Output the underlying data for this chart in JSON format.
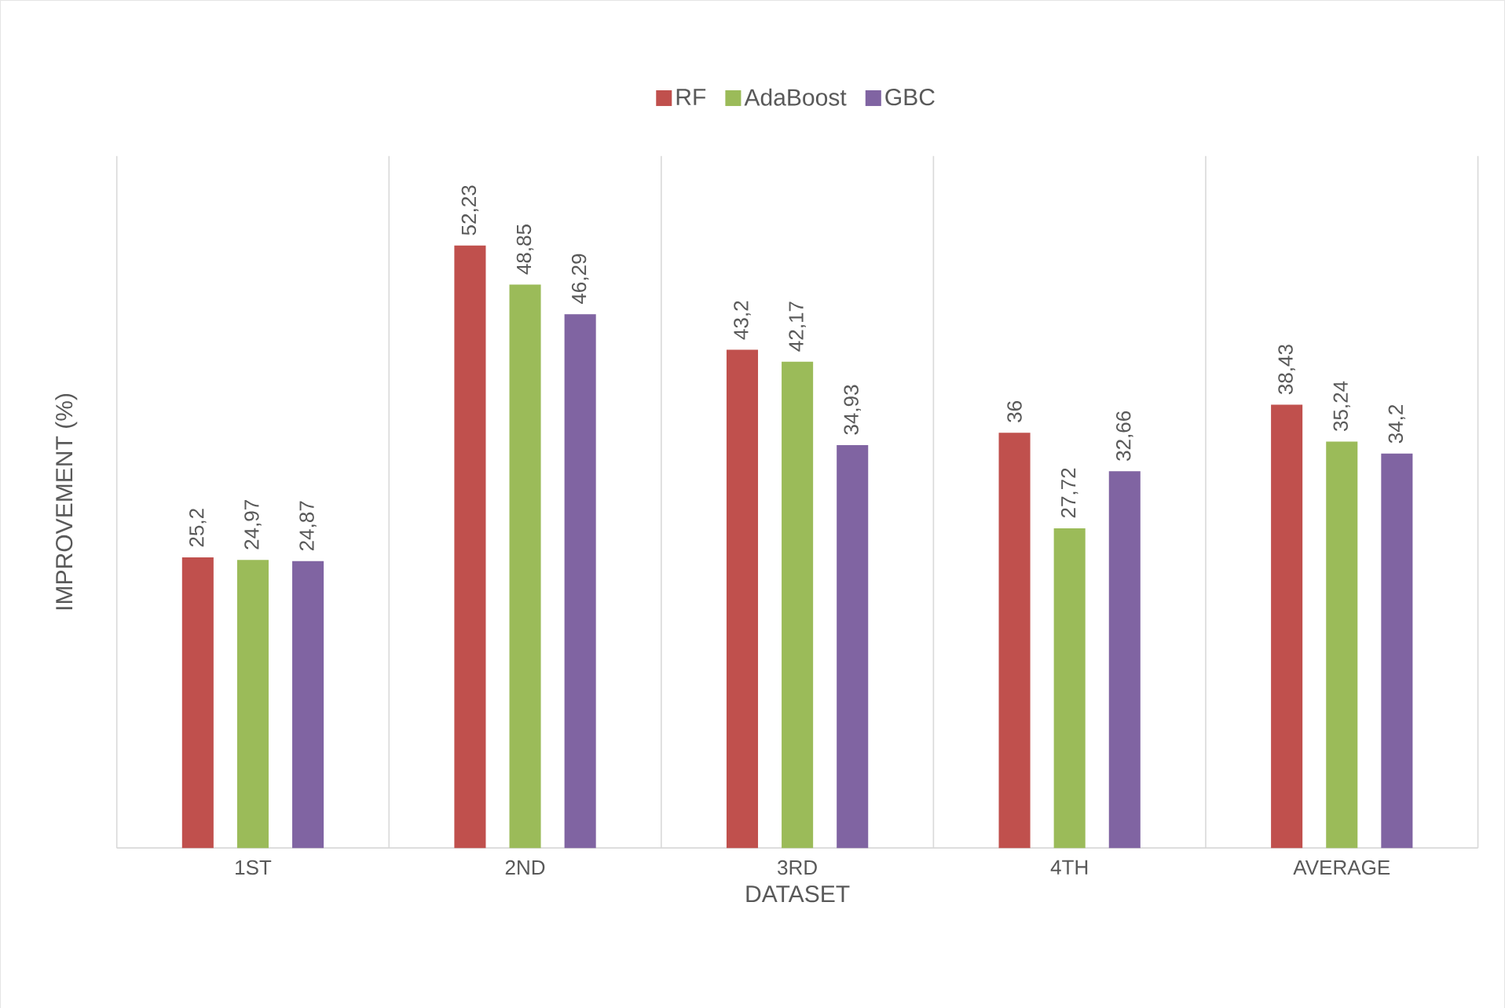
{
  "chart_data": {
    "type": "bar",
    "categories": [
      "1ST",
      "2ND",
      "3RD",
      "4TH",
      "AVERAGE"
    ],
    "series": [
      {
        "name": "RF",
        "color": "#c0504d",
        "values": [
          25.2,
          52.23,
          43.2,
          36,
          38.43
        ],
        "value_labels": [
          "25,2",
          "52,23",
          "43,2",
          "36",
          "38,43"
        ]
      },
      {
        "name": "AdaBoost",
        "color": "#9bbb59",
        "values": [
          24.97,
          48.85,
          42.17,
          27.72,
          35.24
        ],
        "value_labels": [
          "24,97",
          "48,85",
          "42,17",
          "27,72",
          "35,24"
        ]
      },
      {
        "name": "GBC",
        "color": "#8064a2",
        "values": [
          24.87,
          46.29,
          34.93,
          32.66,
          34.2
        ],
        "value_labels": [
          "24,87",
          "46,29",
          "34,93",
          "32,66",
          "34,2"
        ]
      }
    ],
    "ylim": [
      0,
      60
    ],
    "tick_labels": "x",
    "grid": "x",
    "legend": "top",
    "xlabel": "DATASET",
    "ylabel": "IMPROVEMENT (%)"
  }
}
